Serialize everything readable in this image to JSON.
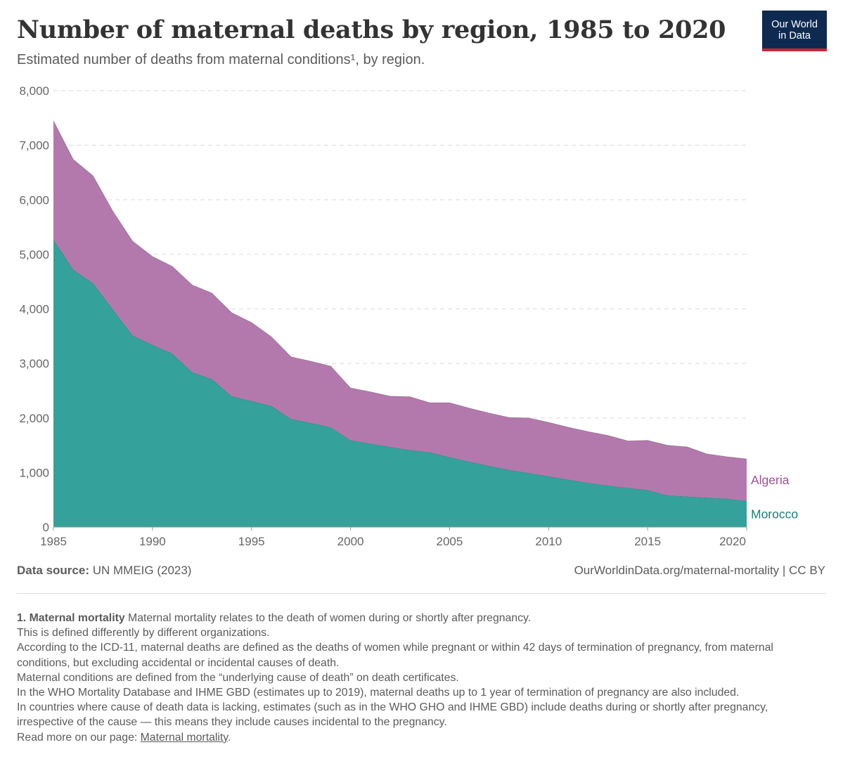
{
  "header": {
    "title": "Number of maternal deaths by region, 1985 to 2020",
    "subtitle": "Estimated number of deaths from maternal conditions¹, by region.",
    "logo_line1": "Our World",
    "logo_line2": "in Data"
  },
  "chart_data": {
    "type": "area",
    "stacked": true,
    "x": [
      1985,
      1986,
      1987,
      1988,
      1989,
      1990,
      1991,
      1992,
      1993,
      1994,
      1995,
      1996,
      1997,
      1998,
      1999,
      2000,
      2001,
      2002,
      2003,
      2004,
      2005,
      2006,
      2007,
      2008,
      2009,
      2010,
      2011,
      2012,
      2013,
      2014,
      2015,
      2016,
      2017,
      2018,
      2019,
      2020
    ],
    "series": [
      {
        "name": "Morocco",
        "color": "#34a19a",
        "values": [
          5270,
          4720,
          4470,
          3990,
          3510,
          3340,
          3180,
          2840,
          2710,
          2400,
          2310,
          2220,
          1980,
          1910,
          1830,
          1590,
          1530,
          1470,
          1410,
          1370,
          1280,
          1200,
          1120,
          1050,
          990,
          930,
          870,
          810,
          760,
          720,
          680,
          580,
          560,
          540,
          520,
          480
        ]
      },
      {
        "name": "Algeria",
        "color": "#b479ac",
        "values": [
          2180,
          2020,
          1970,
          1800,
          1730,
          1620,
          1600,
          1600,
          1580,
          1530,
          1440,
          1270,
          1140,
          1130,
          1120,
          960,
          950,
          930,
          980,
          910,
          1000,
          980,
          970,
          960,
          1010,
          990,
          960,
          940,
          920,
          860,
          910,
          920,
          910,
          800,
          770,
          770
        ]
      }
    ],
    "x_ticks": [
      "1985",
      "1990",
      "1995",
      "2000",
      "2005",
      "2010",
      "2015",
      "2020"
    ],
    "y_ticks": [
      "0",
      "1,000",
      "2,000",
      "3,000",
      "4,000",
      "5,000",
      "6,000",
      "7,000",
      "8,000"
    ],
    "ylim": [
      0,
      8000
    ],
    "xlim": [
      1985,
      2020
    ],
    "legend": "inline-right",
    "grid": true
  },
  "footer": {
    "source_label": "Data source:",
    "source_value": "UN MMEIG (2023)",
    "credit": "OurWorldinData.org/maternal-mortality  | CC BY"
  },
  "notes": {
    "note_label": "1. Maternal mortality",
    "lines": [
      "Maternal mortality relates to the death of women during or shortly after pregnancy.",
      "This is defined differently by different organizations.",
      "According to the ICD-11, maternal deaths are defined as the deaths of women while pregnant or within 42 days of termination of pregnancy, from maternal conditions, but excluding accidental or incidental causes of death.",
      "Maternal conditions are defined from the “underlying cause of death” on death certificates.",
      "In the WHO Mortality Database and IHME GBD (estimates up to 2019), maternal deaths up to 1 year of termination of pregnancy are also included.",
      "In countries where cause of death data is lacking, estimates (such as in the WHO GHO and IHME GBD) include deaths during or shortly after pregnancy, irrespective of the cause — this means they include causes incidental to the pregnancy."
    ],
    "read_more": "Read more on our page:",
    "link_text": "Maternal mortality",
    "link_end": "."
  }
}
